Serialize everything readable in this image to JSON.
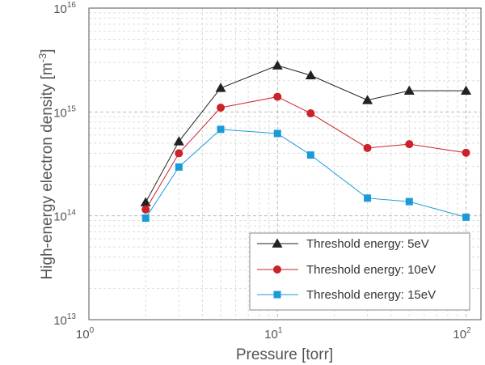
{
  "chart_data": {
    "type": "line",
    "xscale": "log",
    "yscale": "log",
    "xlim": [
      1,
      120
    ],
    "ylim": [
      10000000000000.0,
      1e+16
    ],
    "xlabel": "Pressure [torr]",
    "ylabel": {
      "text": "High-energy electron density [m",
      "sup": "-3",
      "close": "]"
    },
    "xticks": [
      {
        "base": "10",
        "exp": "0",
        "value": 1
      },
      {
        "base": "10",
        "exp": "1",
        "value": 10
      },
      {
        "base": "10",
        "exp": "2",
        "value": 100
      }
    ],
    "yticks": [
      {
        "base": "10",
        "exp": "13",
        "value": 10000000000000.0
      },
      {
        "base": "10",
        "exp": "14",
        "value": 100000000000000.0
      },
      {
        "base": "10",
        "exp": "15",
        "value": 1000000000000000.0
      },
      {
        "base": "10",
        "exp": "16",
        "value": 1e+16
      }
    ],
    "grid": true,
    "legend_position": "bottom-right",
    "x": [
      2,
      3,
      5,
      10,
      15,
      30,
      50,
      100
    ],
    "series": [
      {
        "name": "Threshold energy: 5eV",
        "color": "#222222",
        "marker": "triangle",
        "values": [
          135000000000000.0,
          520000000000000.0,
          1700000000000000.0,
          2800000000000000.0,
          2250000000000000.0,
          1300000000000000.0,
          1600000000000000.0,
          1600000000000000.0
        ]
      },
      {
        "name": "Threshold energy: 10eV",
        "color": "#cc2229",
        "marker": "circle",
        "values": [
          115000000000000.0,
          400000000000000.0,
          1100000000000000.0,
          1400000000000000.0,
          970000000000000.0,
          450000000000000.0,
          490000000000000.0,
          405000000000000.0
        ]
      },
      {
        "name": "Threshold energy: 15eV",
        "color": "#1a9bd7",
        "marker": "square",
        "values": [
          95000000000000.0,
          295000000000000.0,
          680000000000000.0,
          620000000000000.0,
          385000000000000.0,
          148000000000000.0,
          137000000000000.0,
          97000000000000.0
        ]
      }
    ]
  }
}
